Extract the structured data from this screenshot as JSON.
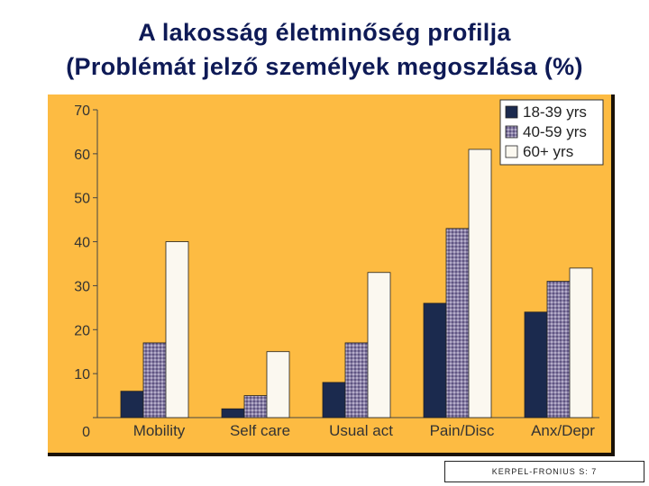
{
  "page": {
    "title_line1": "A lakosság életminőség profilja",
    "title_line2": "(Problémát jelző személyek megoszlása (%)",
    "footer": "KERPEL-FRONIUS S: 7"
  },
  "colors": {
    "background": "#fdbb42",
    "series": [
      "#1b2a4e",
      "#8a7fa6",
      "#fbf8f0"
    ],
    "title": "#0e1a56"
  },
  "chart_data": {
    "type": "bar",
    "title": "",
    "xlabel": "",
    "ylabel": "",
    "ylim": [
      0,
      70
    ],
    "yticks": [
      "0",
      "10",
      "20",
      "30",
      "40",
      "50",
      "60",
      "70"
    ],
    "categories": [
      "Mobility",
      "Self care",
      "Usual act",
      "Pain/Disc",
      "Anx/Depr"
    ],
    "series": [
      {
        "name": "18-39 yrs",
        "values": [
          6,
          2,
          8,
          26,
          24
        ]
      },
      {
        "name": "40-59 yrs",
        "values": [
          17,
          5,
          17,
          43,
          31
        ]
      },
      {
        "name": "60+ yrs",
        "values": [
          40,
          15,
          33,
          61,
          34
        ]
      }
    ],
    "legend_position": "top-right",
    "grid": false
  }
}
